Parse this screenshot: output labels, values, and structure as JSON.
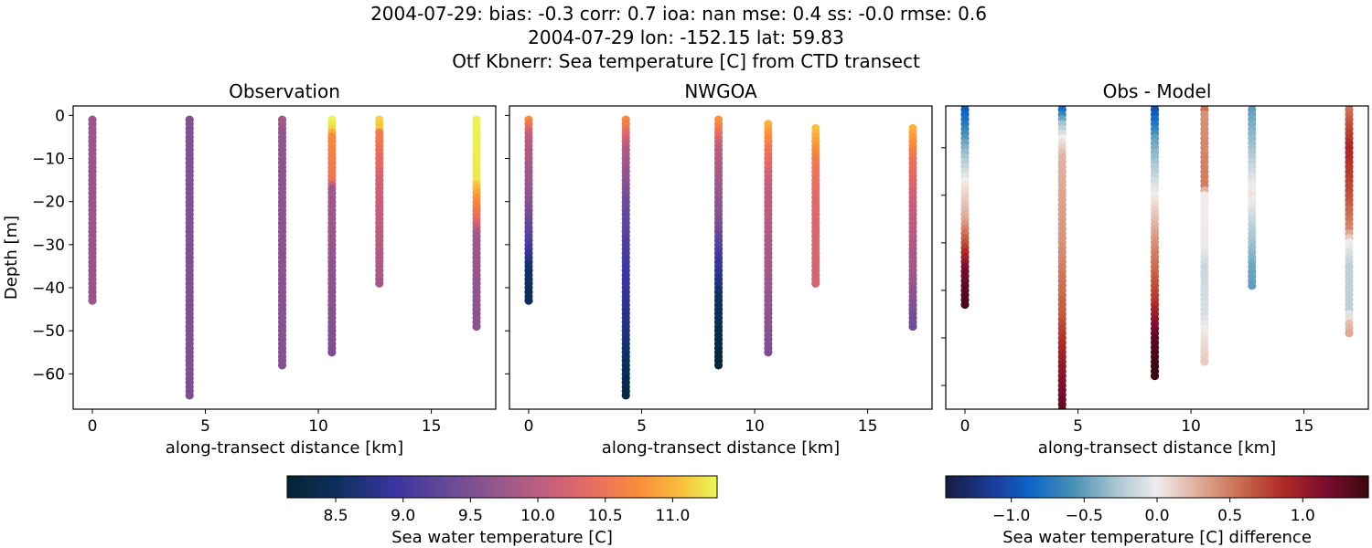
{
  "title_lines": [
    "2004-07-29: bias: -0.3  corr: 0.7  ioa: nan  mse: 0.4  ss: -0.0  rmse: 0.6",
    "2004-07-29 lon: -152.15 lat: 59.83",
    "Otf Kbnerr: Sea temperature [C] from CTD transect"
  ],
  "chart_data": [
    {
      "type": "scatter",
      "title": "Observation",
      "xlabel": "along-transect distance [km]",
      "ylabel": "Depth [m]",
      "xlim": [
        -0.85,
        17.85
      ],
      "ylim": [
        -68.2,
        2.2
      ],
      "xticks": [
        0,
        5,
        10,
        15
      ],
      "yticks": [
        0,
        -10,
        -20,
        -30,
        -40,
        -50,
        -60
      ],
      "show_ytick_labels": true,
      "colormap": "thermal",
      "clim": [
        8.14,
        11.33
      ],
      "profiles": [
        {
          "x": 0.0,
          "knots": [
            [
              -1,
              9.72
            ],
            [
              -43,
              9.7
            ]
          ]
        },
        {
          "x": 4.3,
          "knots": [
            [
              -1,
              9.55
            ],
            [
              -65,
              9.5
            ]
          ]
        },
        {
          "x": 8.4,
          "knots": [
            [
              -1,
              9.8
            ],
            [
              -5,
              9.65
            ],
            [
              -58,
              9.55
            ]
          ]
        },
        {
          "x": 10.6,
          "knots": [
            [
              -1,
              11.3
            ],
            [
              -3,
              11.2
            ],
            [
              -5,
              10.7
            ],
            [
              -15,
              10.5
            ],
            [
              -17,
              9.8
            ],
            [
              -55,
              9.5
            ]
          ]
        },
        {
          "x": 12.7,
          "knots": [
            [
              -1,
              11.15
            ],
            [
              -3,
              11.1
            ],
            [
              -4,
              10.6
            ],
            [
              -15,
              10.2
            ],
            [
              -39,
              9.8
            ]
          ]
        },
        {
          "x": 17.0,
          "knots": [
            [
              -1,
              11.3
            ],
            [
              -15,
              11.25
            ],
            [
              -19,
              10.8
            ],
            [
              -24,
              10.4
            ],
            [
              -28,
              9.75
            ],
            [
              -49,
              9.6
            ]
          ]
        }
      ]
    },
    {
      "type": "scatter",
      "title": "NWGOA",
      "xlabel": "along-transect distance [km]",
      "xlim": [
        -0.85,
        17.85
      ],
      "ylim": [
        -68.2,
        2.2
      ],
      "xticks": [
        0,
        5,
        10,
        15
      ],
      "yticks": [
        0,
        -10,
        -20,
        -30,
        -40,
        -50,
        -60
      ],
      "show_ytick_labels": false,
      "colormap": "thermal",
      "clim": [
        8.14,
        11.33
      ],
      "profiles": [
        {
          "x": 0.0,
          "knots": [
            [
              -1,
              10.7
            ],
            [
              -5,
              10.0
            ],
            [
              -20,
              9.6
            ],
            [
              -30,
              9.1
            ],
            [
              -35,
              8.6
            ],
            [
              -43,
              8.45
            ]
          ]
        },
        {
          "x": 4.3,
          "knots": [
            [
              -1,
              10.7
            ],
            [
              -8,
              9.9
            ],
            [
              -20,
              9.4
            ],
            [
              -35,
              9.0
            ],
            [
              -50,
              8.7
            ],
            [
              -65,
              8.3
            ]
          ]
        },
        {
          "x": 8.4,
          "knots": [
            [
              -1,
              10.8
            ],
            [
              -8,
              10.0
            ],
            [
              -25,
              9.5
            ],
            [
              -33,
              9.0
            ],
            [
              -42,
              8.55
            ],
            [
              -58,
              8.2
            ]
          ]
        },
        {
          "x": 10.6,
          "knots": [
            [
              -2,
              11.0
            ],
            [
              -8,
              10.5
            ],
            [
              -15,
              10.1
            ],
            [
              -35,
              9.8
            ],
            [
              -55,
              9.5
            ]
          ]
        },
        {
          "x": 12.7,
          "knots": [
            [
              -3,
              11.1
            ],
            [
              -10,
              10.6
            ],
            [
              -20,
              10.3
            ],
            [
              -39,
              10.2
            ]
          ]
        },
        {
          "x": 17.0,
          "knots": [
            [
              -3,
              11.0
            ],
            [
              -10,
              10.5
            ],
            [
              -20,
              10.1
            ],
            [
              -35,
              9.8
            ],
            [
              -49,
              9.4
            ]
          ]
        }
      ]
    },
    {
      "type": "scatter",
      "title": "Obs - Model",
      "xlabel": "along-transect distance [km]",
      "xlim": [
        -0.85,
        17.85
      ],
      "ylim": [
        -65,
        -1.2
      ],
      "xticks": [
        0,
        5,
        10,
        15
      ],
      "yticks": [
        -10,
        -20,
        -30,
        -40,
        -50,
        -60
      ],
      "show_ytick_labels": false,
      "colormap": "balance",
      "clim": [
        -1.45,
        1.45
      ],
      "profiles": [
        {
          "x": 0.0,
          "knots": [
            [
              -1,
              -1.0
            ],
            [
              -10,
              -0.4
            ],
            [
              -17,
              0.0
            ],
            [
              -25,
              0.3
            ],
            [
              -30,
              0.7
            ],
            [
              -36,
              1.2
            ],
            [
              -43,
              1.4
            ]
          ]
        },
        {
          "x": 4.3,
          "knots": [
            [
              -1,
              -1.0
            ],
            [
              -5,
              -0.3
            ],
            [
              -8,
              0.0
            ],
            [
              -12,
              0.25
            ],
            [
              -30,
              0.4
            ],
            [
              -45,
              0.65
            ],
            [
              -55,
              1.0
            ],
            [
              -66,
              1.3
            ]
          ]
        },
        {
          "x": 8.4,
          "knots": [
            [
              -1,
              -1.1
            ],
            [
              -8,
              -0.5
            ],
            [
              -20,
              0.0
            ],
            [
              -30,
              0.4
            ],
            [
              -42,
              0.8
            ],
            [
              -50,
              1.3
            ],
            [
              -58,
              1.5
            ]
          ]
        },
        {
          "x": 10.6,
          "knots": [
            [
              -1,
              0.7
            ],
            [
              -3,
              0.4
            ],
            [
              -18,
              0.5
            ],
            [
              -20,
              0.0
            ],
            [
              -30,
              0.02
            ],
            [
              -35,
              -0.15
            ],
            [
              -45,
              -0.1
            ],
            [
              -50,
              0.05
            ],
            [
              -55,
              0.15
            ]
          ]
        },
        {
          "x": 12.7,
          "knots": [
            [
              -1,
              0.2
            ],
            [
              -2,
              -0.5
            ],
            [
              -10,
              -0.3
            ],
            [
              -20,
              0.05
            ],
            [
              -25,
              -0.15
            ],
            [
              -35,
              -0.45
            ],
            [
              -39,
              -0.5
            ]
          ]
        },
        {
          "x": 17.0,
          "knots": [
            [
              -1,
              0.5
            ],
            [
              -10,
              0.9
            ],
            [
              -20,
              0.7
            ],
            [
              -27,
              0.45
            ],
            [
              -30,
              0.0
            ],
            [
              -35,
              -0.2
            ],
            [
              -44,
              -0.2
            ],
            [
              -47,
              0.2
            ],
            [
              -49,
              0.3
            ]
          ]
        }
      ]
    }
  ],
  "colorbars": [
    {
      "label": "Sea water temperature [C]",
      "colormap": "thermal",
      "clim": [
        8.14,
        11.33
      ],
      "ticks": [
        8.5,
        9.0,
        9.5,
        10.0,
        10.5,
        11.0
      ],
      "tick_labels": [
        "8.5",
        "9.0",
        "9.5",
        "10.0",
        "10.5",
        "11.0"
      ]
    },
    {
      "label": "Sea water temperature [C] difference",
      "colormap": "balance",
      "clim": [
        -1.45,
        1.45
      ],
      "ticks": [
        -1.0,
        -0.5,
        0.0,
        0.5,
        1.0
      ],
      "tick_labels": [
        "−1.0",
        "−0.5",
        "0.0",
        "0.5",
        "1.0"
      ]
    }
  ]
}
